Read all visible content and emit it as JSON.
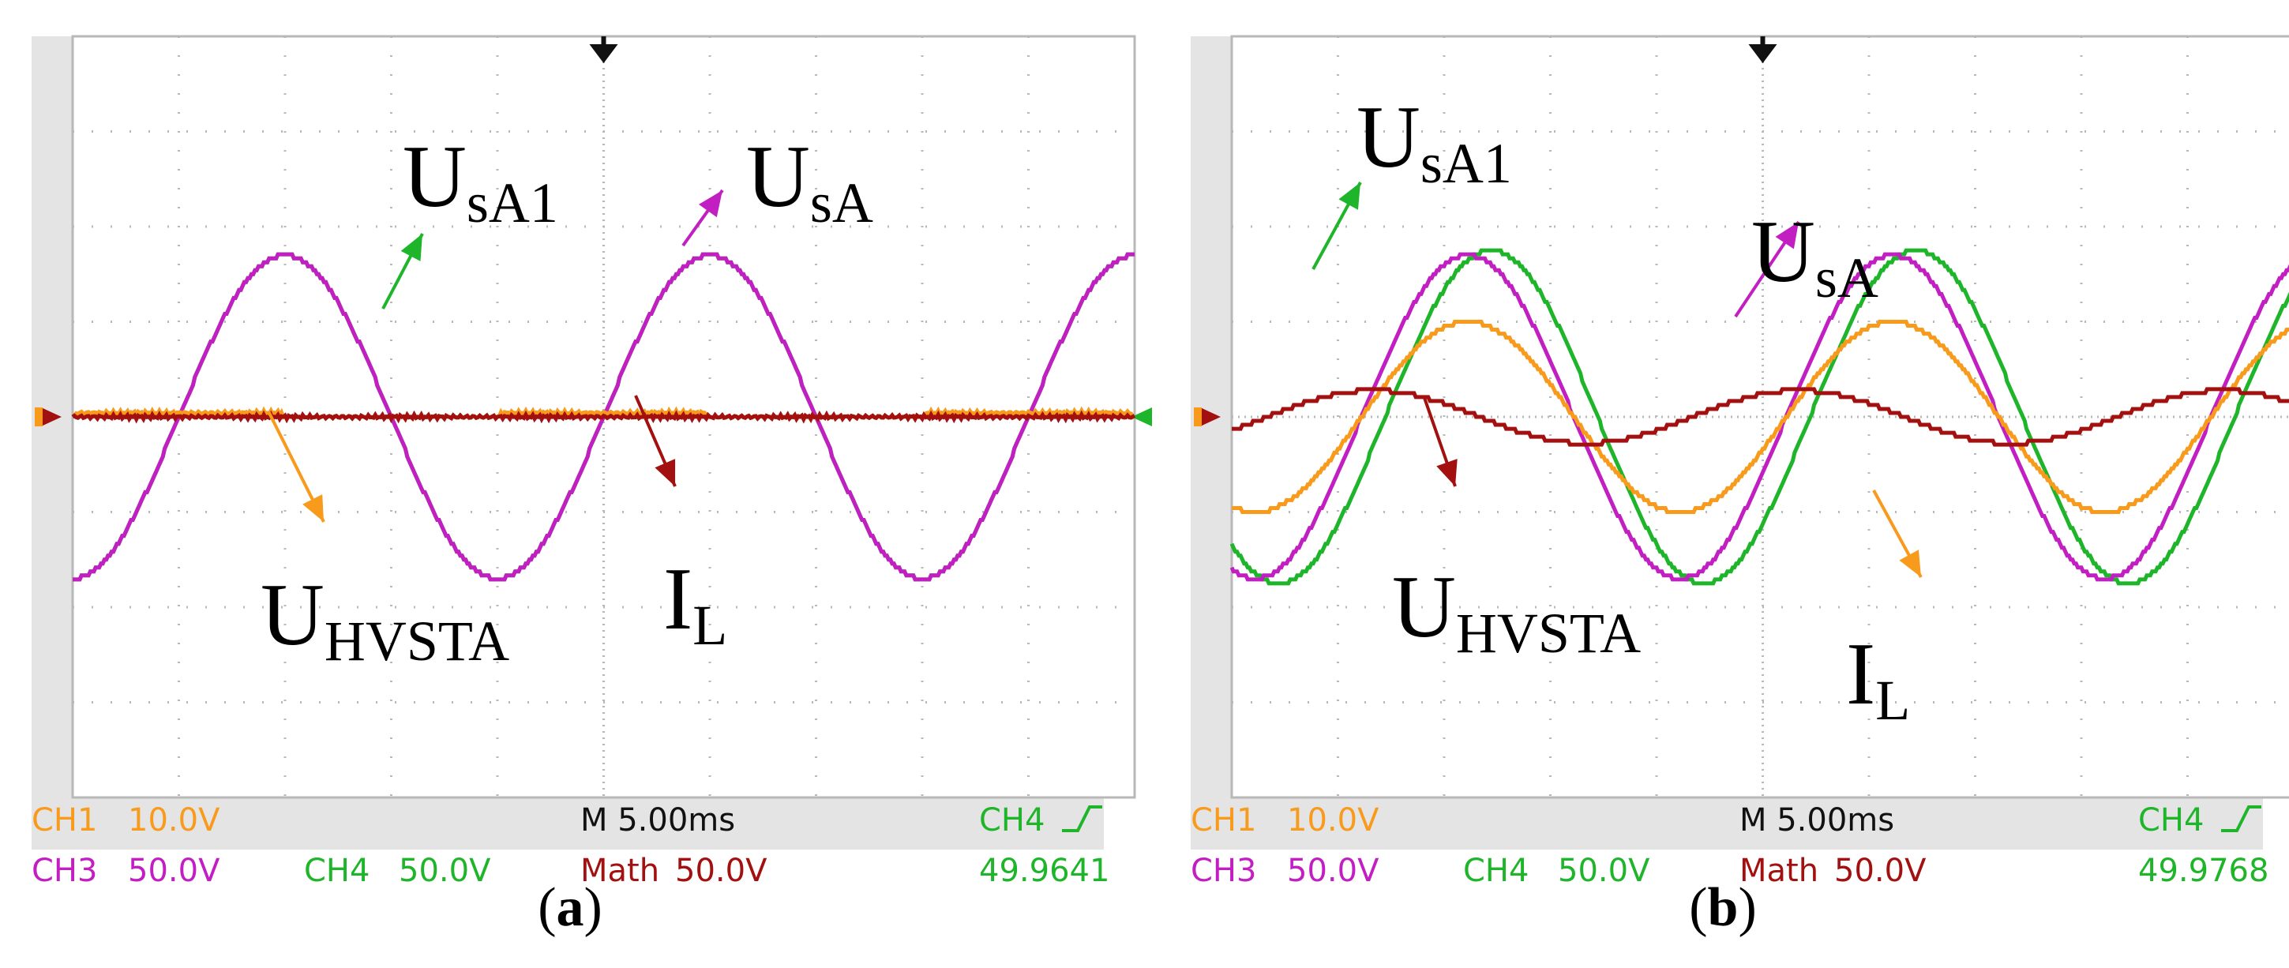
{
  "colors": {
    "ch1": "#F89A1C",
    "ch3": "#C21FC2",
    "ch4": "#1FB52A",
    "math": "#A31010",
    "grid": "#B8B8B8",
    "screen_bg": "#FFFFFF",
    "frame": "#E4E4E4"
  },
  "chart_data": [
    {
      "type": "line",
      "panel_label": "a",
      "time_per_div": "M 5.00ms",
      "trigger": "CH4",
      "frequency_readout": "49.9641",
      "channels": {
        "ch1": {
          "name": "CH1",
          "scale": "10.0V"
        },
        "ch3": {
          "name": "CH3",
          "scale": "50.0V"
        },
        "ch4": {
          "name": "CH4",
          "scale": "50.0V"
        },
        "math": {
          "name": "Math",
          "scale": "50.0V"
        }
      },
      "grid": {
        "x_divisions": 10,
        "y_divisions": 8
      },
      "series": [
        {
          "key": "ch4",
          "amplitude_div": 1.7,
          "phase_deg": -90,
          "period_div": 4.0
        },
        {
          "key": "ch3",
          "amplitude_div": 1.7,
          "phase_deg": -90,
          "period_div": 4.0
        },
        {
          "key": "ch1",
          "amplitude_div": 0.02,
          "phase_deg": 0,
          "period_div": 4.0,
          "offset_div": 0.02
        },
        {
          "key": "math",
          "amplitude_div": 0.02,
          "phase_deg": 0,
          "period_div": 4.0
        }
      ],
      "annotations": [
        {
          "main": "U",
          "sub": "sA1",
          "color": "ch4"
        },
        {
          "main": "U",
          "sub": "sA",
          "color": "ch3"
        },
        {
          "main": "U",
          "sub": "HVSTA",
          "color": "ch1"
        },
        {
          "main": "I",
          "sub": "L",
          "color": "math"
        }
      ]
    },
    {
      "type": "line",
      "panel_label": "b",
      "time_per_div": "M 5.00ms",
      "trigger": "CH4",
      "frequency_readout": "49.9768",
      "channels": {
        "ch1": {
          "name": "CH1",
          "scale": "10.0V"
        },
        "ch3": {
          "name": "CH3",
          "scale": "50.0V"
        },
        "ch4": {
          "name": "CH4",
          "scale": "50.0V"
        },
        "math": {
          "name": "Math",
          "scale": "50.0V"
        }
      },
      "grid": {
        "x_divisions": 10,
        "y_divisions": 8
      },
      "series": [
        {
          "key": "ch4",
          "amplitude_div": 1.75,
          "phase_deg": -130,
          "period_div": 4.0
        },
        {
          "key": "ch3",
          "amplitude_div": 1.7,
          "phase_deg": -110,
          "period_div": 4.0
        },
        {
          "key": "ch1",
          "amplitude_div": 1.0,
          "phase_deg": -110,
          "period_div": 4.0
        },
        {
          "key": "math",
          "amplitude_div": 0.28,
          "phase_deg": -30,
          "period_div": 4.0
        }
      ],
      "annotations": [
        {
          "main": "U",
          "sub": "sA1",
          "color": "ch4"
        },
        {
          "main": "U",
          "sub": "sA",
          "color": "ch3"
        },
        {
          "main": "U",
          "sub": "HVSTA",
          "color": "math"
        },
        {
          "main": "I",
          "sub": "L",
          "color": "ch1"
        }
      ]
    }
  ]
}
